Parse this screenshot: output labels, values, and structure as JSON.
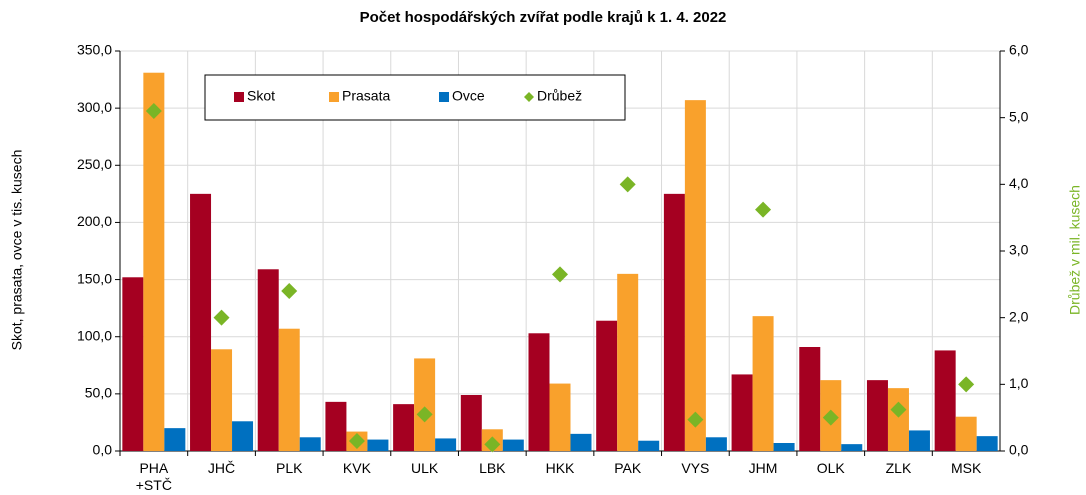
{
  "chart_data": {
    "type": "bar",
    "title": "Počet hospodářských zvířat podle krajů k 1. 4. 2022",
    "y_label": "Skot, prasata, ovce v tis. kusech",
    "y2_label": "Drůbež v mil. kusech",
    "categories": [
      "PHA\n+STČ",
      "JHČ",
      "PLK",
      "KVK",
      "ULK",
      "LBK",
      "HKK",
      "PAK",
      "VYS",
      "JHM",
      "OLK",
      "ZLK",
      "MSK"
    ],
    "series": [
      {
        "name": "Skot",
        "color": "#a50021",
        "values": [
          152,
          225,
          159,
          43,
          41,
          49,
          103,
          114,
          225,
          67,
          91,
          62,
          88
        ]
      },
      {
        "name": "Prasata",
        "color": "#f9a12c",
        "values": [
          331,
          89,
          107,
          17,
          81,
          19,
          59,
          155,
          307,
          118,
          62,
          55,
          30
        ]
      },
      {
        "name": "Ovce",
        "color": "#0070c0",
        "values": [
          20,
          26,
          12,
          10,
          11,
          10,
          15,
          9,
          12,
          7,
          6,
          18,
          13
        ]
      },
      {
        "name": "Drůbež",
        "color": "#7ab526",
        "axis": "y2",
        "marker": "diamond",
        "values": [
          5.1,
          2.0,
          2.4,
          0.15,
          0.55,
          0.1,
          2.65,
          4.0,
          0.47,
          3.62,
          0.5,
          0.62,
          1.0
        ]
      }
    ],
    "ylim": [
      0,
      350
    ],
    "yticks": [
      {
        "value": 0,
        "label": "0,0"
      },
      {
        "value": 50,
        "label": "50,0"
      },
      {
        "value": 100,
        "label": "100,0"
      },
      {
        "value": 150,
        "label": "150,0"
      },
      {
        "value": 200,
        "label": "200,0"
      },
      {
        "value": 250,
        "label": "250,0"
      },
      {
        "value": 300,
        "label": "300,0"
      },
      {
        "value": 350,
        "label": "350,0"
      }
    ],
    "y2lim": [
      0,
      6
    ],
    "y2ticks": [
      {
        "value": 0,
        "label": "0,0"
      },
      {
        "value": 1,
        "label": "1,0"
      },
      {
        "value": 2,
        "label": "2,0"
      },
      {
        "value": 3,
        "label": "3,0"
      },
      {
        "value": 4,
        "label": "4,0"
      },
      {
        "value": 5,
        "label": "5,0"
      },
      {
        "value": 6,
        "label": "6,0"
      }
    ],
    "grid": true,
    "legend": "top-left"
  }
}
